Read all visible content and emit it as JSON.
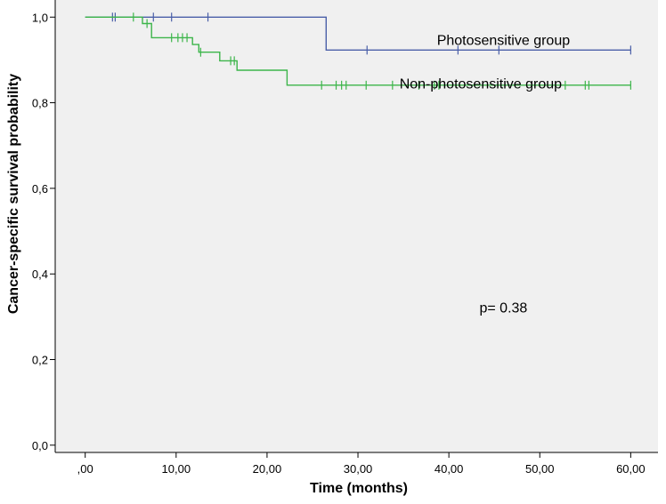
{
  "chart_data": {
    "type": "line",
    "title": "",
    "xlabel": "Time (months)",
    "ylabel": "Cancer-specific survival probability",
    "xlim": [
      -3.3,
      63
    ],
    "ylim": [
      -0.017,
      1.04
    ],
    "x_ticks": [
      0,
      10,
      20,
      30,
      40,
      50,
      60
    ],
    "x_tick_labels": [
      ",00",
      "10,00",
      "20,00",
      "30,00",
      "40,00",
      "50,00",
      "60,00"
    ],
    "y_ticks": [
      0,
      0.2,
      0.4,
      0.6,
      0.8,
      1.0
    ],
    "y_tick_labels": [
      "0,0",
      "0,2",
      "0,4",
      "0,6",
      "0,8",
      "1,0"
    ],
    "step": true,
    "grid": false,
    "colors": {
      "background": "#f0f0f0",
      "axis": "#000000"
    },
    "series": [
      {
        "name": "Photosensitive group",
        "color": "#4a5fa8",
        "x": [
          0,
          26.5,
          60
        ],
        "y": [
          1.0,
          0.923,
          0.923
        ],
        "censored_x": [
          3,
          3.3,
          7.5,
          9.5,
          13.5,
          31,
          41,
          45.5,
          60
        ]
      },
      {
        "name": "Non-photosensitive group",
        "color": "#3cb54a",
        "x": [
          0,
          6.3,
          7.3,
          11.8,
          12.5,
          14.8,
          16.7,
          22.2,
          60
        ],
        "y": [
          1.0,
          0.985,
          0.952,
          0.936,
          0.918,
          0.898,
          0.876,
          0.841,
          0.841
        ],
        "censored_x": [
          5.3,
          6.8,
          9.5,
          10.2,
          10.7,
          11.2,
          12.7,
          16.0,
          16.4,
          26.0,
          27.6,
          28.2,
          28.7,
          30.9,
          33.8,
          36.7,
          38.4,
          38.9,
          52.8,
          55.0,
          55.4,
          60.0
        ]
      }
    ],
    "series_labels": [
      {
        "text": "Photosensitive group",
        "x": 46,
        "y": 0.935
      },
      {
        "text": "Non-photosensitive group",
        "x": 43.5,
        "y": 0.833
      }
    ],
    "annotations": [
      {
        "text": "p= 0.38",
        "x": 46,
        "y": 0.31
      }
    ]
  }
}
